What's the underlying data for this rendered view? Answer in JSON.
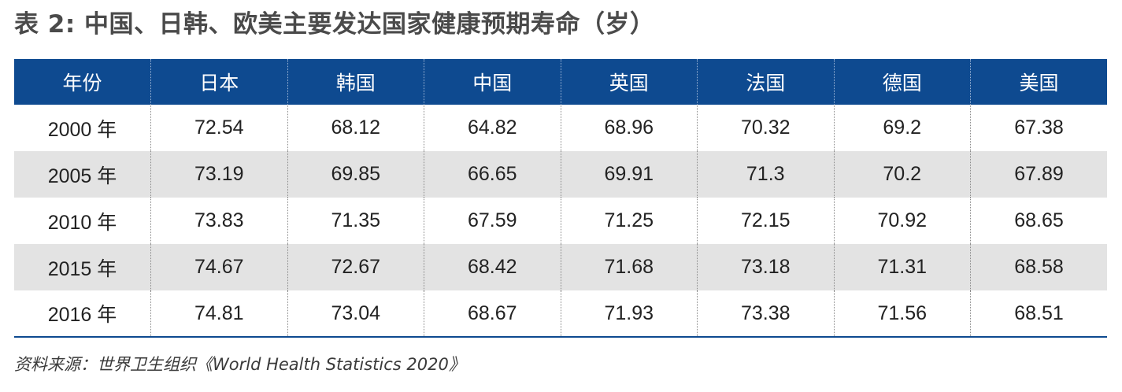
{
  "title": "表 2: 中国、日韩、欧美主要发达国家健康预期寿命（岁）",
  "table": {
    "headers": [
      "年份",
      "日本",
      "韩国",
      "中国",
      "英国",
      "法国",
      "德国",
      "美国"
    ],
    "rows": [
      [
        "2000 年",
        "72.54",
        "68.12",
        "64.82",
        "68.96",
        "70.32",
        "69.2",
        "67.38"
      ],
      [
        "2005 年",
        "73.19",
        "69.85",
        "66.65",
        "69.91",
        "71.3",
        "70.2",
        "67.89"
      ],
      [
        "2010 年",
        "73.83",
        "71.35",
        "67.59",
        "71.25",
        "72.15",
        "70.92",
        "68.65"
      ],
      [
        "2015 年",
        "74.67",
        "72.67",
        "68.42",
        "71.68",
        "73.18",
        "71.31",
        "68.58"
      ],
      [
        "2016 年",
        "74.81",
        "73.04",
        "68.67",
        "71.93",
        "73.38",
        "71.56",
        "68.51"
      ]
    ]
  },
  "source": "资料来源：世界卫生组织《World Health Statistics 2020》",
  "colors": {
    "header_bg": "#0e4a90",
    "stripe_bg": "#e3e3e3",
    "title_text": "#4a4a4a"
  }
}
